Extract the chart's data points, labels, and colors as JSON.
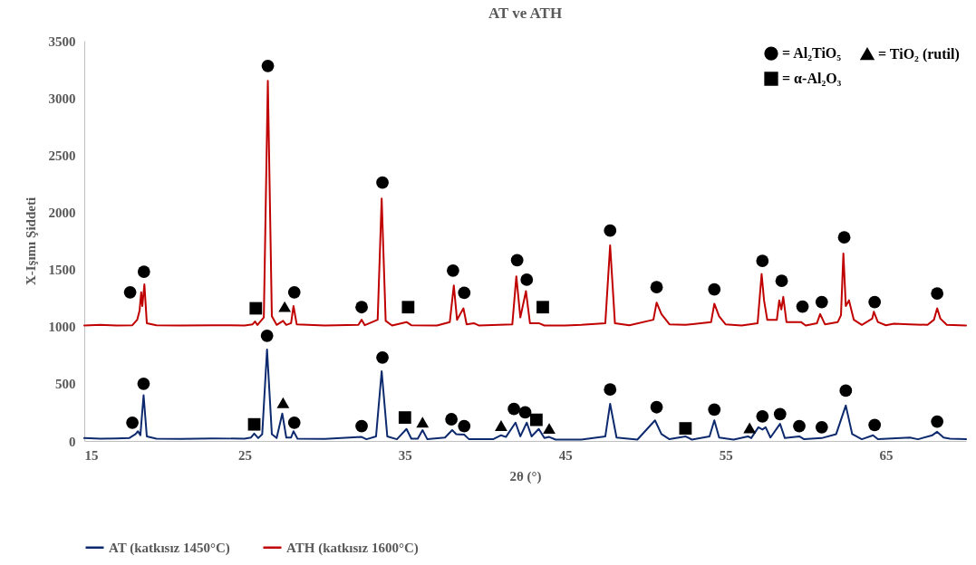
{
  "chart_data": {
    "type": "line",
    "title": "AT ve ATH",
    "xlabel": "2θ (°)",
    "ylabel": "X-Işımı Şiddeti",
    "xlim": [
      15,
      70
    ],
    "xticks": [
      15,
      25,
      35,
      45,
      55,
      65
    ],
    "ylim": [
      0,
      3500
    ],
    "yticks": [
      0,
      500,
      1000,
      1500,
      2000,
      2500,
      3000,
      3500
    ],
    "grid": false,
    "legend": "bottom",
    "line_style": "solid",
    "series": [
      {
        "name": "AT (katkısız 1450°C)",
        "color": "#0e2a6e",
        "x": [
          15,
          16,
          17,
          17.8,
          18.2,
          18.35,
          18.5,
          18.7,
          18.9,
          19.5,
          21,
          23,
          25,
          25.4,
          25.6,
          25.85,
          26.1,
          26.4,
          26.7,
          27.0,
          27.35,
          27.6,
          27.9,
          28.05,
          28.3,
          30,
          32.3,
          32.6,
          33.2,
          33.55,
          33.9,
          34.5,
          35.1,
          35.4,
          35.8,
          36.1,
          36.4,
          37.5,
          37.95,
          38.2,
          38.7,
          39.0,
          40.5,
          41.0,
          41.3,
          41.9,
          42.2,
          42.6,
          42.9,
          43.35,
          43.7,
          44.0,
          44.4,
          46,
          47.5,
          47.8,
          48.2,
          49.5,
          50.6,
          51.0,
          51.5,
          52.5,
          52.9,
          54.0,
          54.3,
          54.6,
          55.5,
          56.4,
          56.6,
          57.05,
          57.3,
          57.5,
          57.8,
          58.4,
          58.7,
          59.6,
          59.9,
          61.0,
          61.9,
          62.5,
          62.9,
          63.5,
          64.2,
          64.5,
          66.5,
          67,
          67.9,
          68.2,
          68.6,
          69,
          70
        ],
        "values": [
          25,
          20,
          22,
          25,
          60,
          85,
          50,
          400,
          40,
          20,
          18,
          22,
          20,
          30,
          65,
          25,
          60,
          800,
          60,
          25,
          240,
          30,
          30,
          85,
          20,
          18,
          35,
          15,
          40,
          610,
          40,
          15,
          105,
          20,
          20,
          95,
          15,
          30,
          95,
          60,
          55,
          15,
          15,
          50,
          35,
          160,
          40,
          160,
          40,
          105,
          25,
          35,
          12,
          12,
          40,
          325,
          30,
          12,
          180,
          60,
          15,
          40,
          12,
          40,
          180,
          30,
          12,
          40,
          25,
          120,
          100,
          120,
          30,
          150,
          25,
          40,
          15,
          25,
          60,
          310,
          60,
          15,
          50,
          15,
          30,
          15,
          50,
          80,
          30,
          20,
          15
        ]
      },
      {
        "name": "ATH (katkısız 1600°C)",
        "color": "#c00000",
        "x": [
          15,
          16,
          17,
          18,
          18.3,
          18.45,
          18.55,
          18.62,
          18.75,
          18.9,
          19.5,
          21,
          23,
          25,
          25.5,
          25.65,
          25.8,
          26.2,
          26.45,
          26.7,
          27,
          27.4,
          27.6,
          27.9,
          28.05,
          28.25,
          30,
          32.1,
          32.3,
          32.5,
          33.3,
          33.55,
          33.8,
          34.2,
          35.1,
          35.4,
          37,
          37.8,
          38.05,
          38.25,
          38.65,
          38.85,
          39.3,
          39.6,
          41.7,
          41.95,
          42.2,
          42.55,
          42.8,
          43.35,
          43.7,
          45,
          46,
          47.5,
          47.8,
          48.1,
          49,
          50.5,
          50.7,
          51.0,
          51.5,
          52.5,
          54.1,
          54.3,
          54.6,
          55,
          56,
          57.0,
          57.25,
          57.4,
          57.6,
          58.2,
          58.35,
          58.48,
          58.6,
          58.8,
          59.7,
          60,
          60.7,
          60.9,
          61.2,
          62.0,
          62.2,
          62.35,
          62.5,
          62.7,
          63.0,
          63.5,
          64.15,
          64.25,
          64.5,
          65,
          65.5,
          66.5,
          67.6,
          68.0,
          68.2,
          68.4,
          68.8,
          70
        ],
        "values": [
          1010,
          1015,
          1010,
          1012,
          1060,
          1140,
          1300,
          1180,
          1370,
          1030,
          1012,
          1010,
          1012,
          1010,
          1020,
          1045,
          1015,
          1080,
          3150,
          1090,
          1015,
          1050,
          1015,
          1030,
          1180,
          1020,
          1010,
          1015,
          1060,
          1012,
          1060,
          2120,
          1050,
          1010,
          1040,
          1012,
          1010,
          1040,
          1360,
          1060,
          1160,
          1020,
          1030,
          1010,
          1020,
          1440,
          1080,
          1310,
          1030,
          1030,
          1010,
          1010,
          1015,
          1030,
          1710,
          1030,
          1012,
          1060,
          1210,
          1110,
          1020,
          1015,
          1040,
          1200,
          1090,
          1020,
          1010,
          1030,
          1460,
          1230,
          1060,
          1060,
          1230,
          1150,
          1260,
          1040,
          1040,
          1010,
          1030,
          1110,
          1020,
          1040,
          1100,
          1640,
          1180,
          1230,
          1060,
          1015,
          1070,
          1130,
          1040,
          1012,
          1025,
          1020,
          1015,
          1060,
          1160,
          1070,
          1015,
          1010
        ]
      },
      {
        "name": "= Al₂TiO₅",
        "type": "scatter",
        "marker": "circle",
        "color": "#000000",
        "x": [
          17.86,
          18.72,
          26.45,
          28.1,
          32.3,
          33.6,
          38.0,
          38.7,
          42.0,
          42.6,
          47.8,
          50.7,
          54.3,
          57.3,
          58.5,
          59.8,
          61.0,
          62.4,
          64.3,
          68.2,
          18.0,
          18.7,
          26.4,
          28.1,
          32.3,
          33.6,
          37.9,
          38.7,
          41.8,
          42.5,
          47.8,
          50.7,
          54.3,
          57.3,
          58.4,
          59.6,
          61.0,
          62.5,
          64.3,
          68.2
        ],
        "values": [
          1300,
          1480,
          3280,
          1300,
          1170,
          2260,
          1490,
          1295,
          1580,
          1410,
          1840,
          1345,
          1325,
          1575,
          1400,
          1175,
          1215,
          1780,
          1215,
          1290,
          160,
          500,
          920,
          160,
          130,
          730,
          190,
          130,
          280,
          250,
          450,
          295,
          275,
          215,
          235,
          130,
          120,
          440,
          140,
          170
        ]
      },
      {
        "name": "= α-Al₂O₃",
        "type": "scatter",
        "marker": "square",
        "color": "#000000",
        "x": [
          25.7,
          35.2,
          43.6,
          25.6,
          35.0,
          43.2,
          52.5
        ],
        "values": [
          1160,
          1170,
          1170,
          145,
          205,
          185,
          110
        ]
      },
      {
        "name": "= TiO₂ (rutil)",
        "type": "scatter",
        "marker": "triangle",
        "color": "#000000",
        "x": [
          27.5,
          27.4,
          36.1,
          41.0,
          44.0,
          56.5
        ],
        "values": [
          1175,
          335,
          165,
          135,
          110,
          115
        ]
      }
    ]
  }
}
